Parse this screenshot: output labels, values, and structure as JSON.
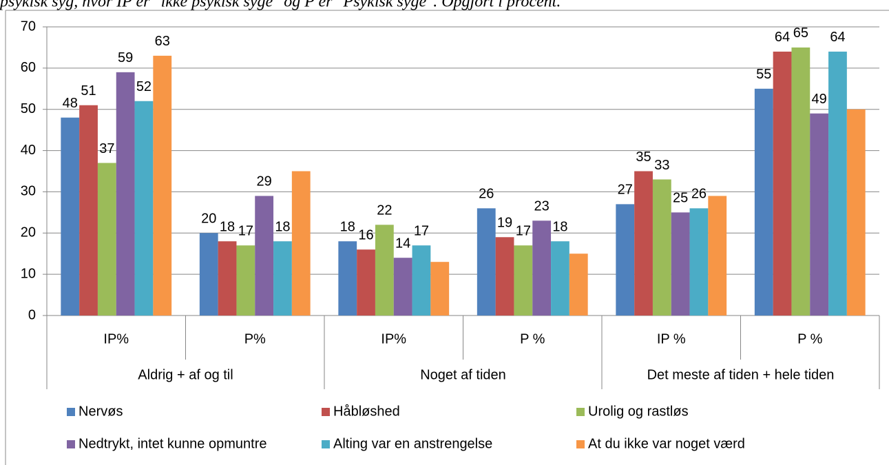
{
  "chart_data": {
    "type": "bar",
    "title": "psykisk syg, hvor IP er \"ikke psykisk syge\" og P er \"Psykisk syge\". Opgjort i procent.",
    "groups": [
      {
        "name": "Aldrig + af og til",
        "categories": [
          "IP%",
          "P%"
        ]
      },
      {
        "name": "Noget af tiden",
        "categories": [
          "IP%",
          "P %"
        ]
      },
      {
        "name": "Det meste af tiden + hele tiden",
        "categories": [
          "IP %",
          "P %"
        ]
      }
    ],
    "series": [
      {
        "name": "Nervøs",
        "color": "#4f81bd",
        "values": [
          48,
          20,
          18,
          26,
          27,
          55
        ],
        "value_labels": [
          "48",
          "20",
          "18",
          "26",
          "27",
          "55"
        ]
      },
      {
        "name": "Håbløshed",
        "color": "#c0504d",
        "values": [
          51,
          18,
          16,
          19,
          35,
          64
        ],
        "value_labels": [
          "51",
          "18",
          "16",
          "19",
          "35",
          "64"
        ]
      },
      {
        "name": "Urolig og rastløs",
        "color": "#9bbb59",
        "values": [
          37,
          17,
          22,
          17,
          33,
          65
        ],
        "value_labels": [
          "37",
          "17",
          "22",
          "17",
          "33",
          "65"
        ]
      },
      {
        "name": "Nedtrykt, intet kunne opmuntre",
        "color": "#8064a2",
        "values": [
          59,
          29,
          14,
          23,
          25,
          49
        ],
        "value_labels": [
          "59",
          "29",
          "14",
          "23",
          "25",
          "49"
        ]
      },
      {
        "name": "Alting var en anstrengelse",
        "color": "#4bacc6",
        "values": [
          52,
          18,
          17,
          18,
          26,
          64
        ],
        "value_labels": [
          "52",
          "18",
          "17",
          "18",
          "26",
          "64"
        ]
      },
      {
        "name": "At du ikke var noget værd",
        "color": "#f79646",
        "values": [
          63,
          35,
          13,
          15,
          29,
          50
        ],
        "value_labels": [
          "63",
          null,
          null,
          null,
          null,
          null
        ]
      }
    ],
    "ylim": [
      0,
      70
    ],
    "yticks": [
      0,
      10,
      20,
      30,
      40,
      50,
      60,
      70
    ],
    "grid": true,
    "legend": "bottom"
  }
}
